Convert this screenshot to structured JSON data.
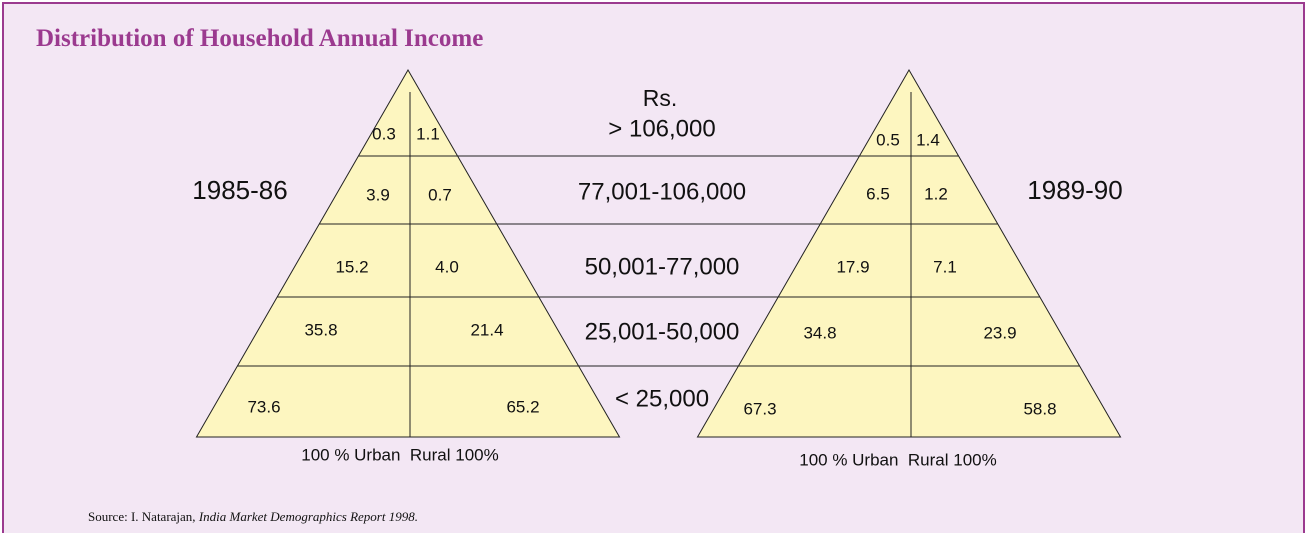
{
  "title": "Distribution of Household Annual Income",
  "currency_label": "Rs.",
  "bands": [
    "> 106,000",
    "77,001-106,000",
    "50,001-77,000",
    "25,001-50,000",
    "< 25,000"
  ],
  "pyramids": [
    {
      "year": "1985-86",
      "urban": [
        "0.3",
        "3.9",
        "15.2",
        "35.8",
        "73.6"
      ],
      "rural": [
        "1.1",
        "0.7",
        "4.0",
        "21.4",
        "65.2"
      ],
      "footer": "100 % Urban  Rural 100%"
    },
    {
      "year": "1989-90",
      "urban": [
        "0.5",
        "6.5",
        "17.9",
        "34.8",
        "67.3"
      ],
      "rural": [
        "1.4",
        "1.2",
        "7.1",
        "23.9",
        "58.8"
      ],
      "footer": "100 % Urban  Rural 100%"
    }
  ],
  "source": {
    "prefix": "Source: I. Natarajan, ",
    "work": "India Market Demographics Report 1998."
  }
}
